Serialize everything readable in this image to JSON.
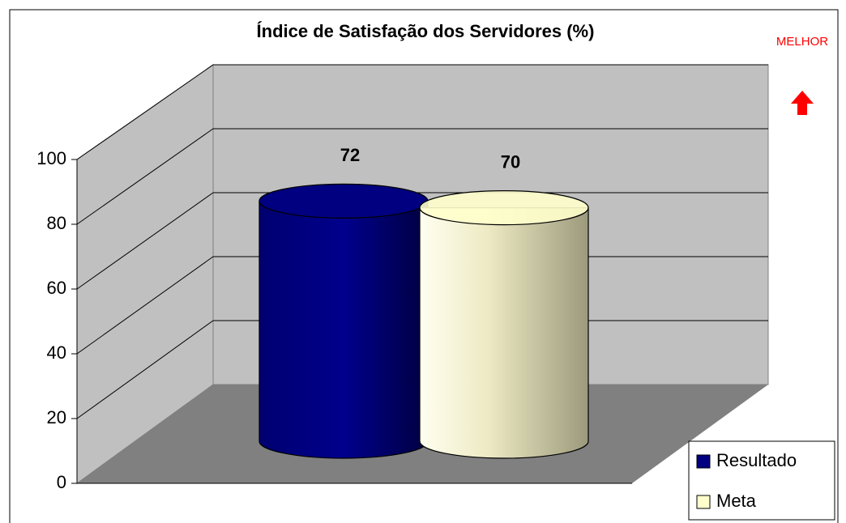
{
  "chart_data": {
    "type": "bar3d",
    "title": "Índice de Satisfação dos Servidores (%)",
    "annotation": "MELHOR",
    "categories": [
      null
    ],
    "series": [
      {
        "name": "Resultado",
        "color": "#000080",
        "values": [
          72
        ]
      },
      {
        "name": "Meta",
        "color": "#FFFFCC",
        "values": [
          70
        ]
      }
    ],
    "ylim": [
      0,
      100
    ],
    "yticks": [
      0,
      20,
      40,
      60,
      80,
      100
    ],
    "grid": true,
    "legend": "bottom-right"
  }
}
